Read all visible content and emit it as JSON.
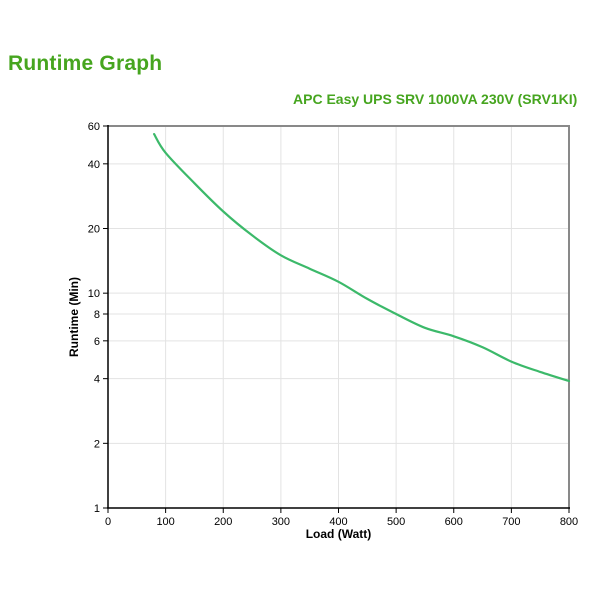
{
  "page": {
    "title": "Runtime Graph"
  },
  "colors": {
    "accent_green": "#46a51f",
    "curve_green": "#3cb96a",
    "grid": "#e3e3e3",
    "plot_border": "#898989",
    "axis": "#000000",
    "background": "#ffffff"
  },
  "chart_data": {
    "type": "line",
    "title": "APC Easy UPS SRV 1000VA 230V (SRV1KI)",
    "xlabel": "Load (Watt)",
    "ylabel": "Runtime (Min)",
    "x_ticks": [
      0,
      100,
      200,
      300,
      400,
      500,
      600,
      700,
      800
    ],
    "y_ticks": [
      1,
      2,
      4,
      6,
      8,
      10,
      20,
      40,
      60
    ],
    "xlim": [
      0,
      800
    ],
    "ylim": [
      1,
      60
    ],
    "y_scale": "log",
    "grid": true,
    "legend": "none",
    "series": [
      {
        "name": "Runtime",
        "color": "#3cb96a",
        "points": [
          [
            80,
            55
          ],
          [
            100,
            45
          ],
          [
            150,
            32.5
          ],
          [
            200,
            24
          ],
          [
            250,
            18.6
          ],
          [
            300,
            15
          ],
          [
            350,
            13
          ],
          [
            400,
            11.3
          ],
          [
            450,
            9.4
          ],
          [
            500,
            8
          ],
          [
            550,
            6.9
          ],
          [
            600,
            6.3
          ],
          [
            650,
            5.6
          ],
          [
            700,
            4.8
          ],
          [
            750,
            4.3
          ],
          [
            800,
            3.9
          ]
        ]
      }
    ]
  }
}
